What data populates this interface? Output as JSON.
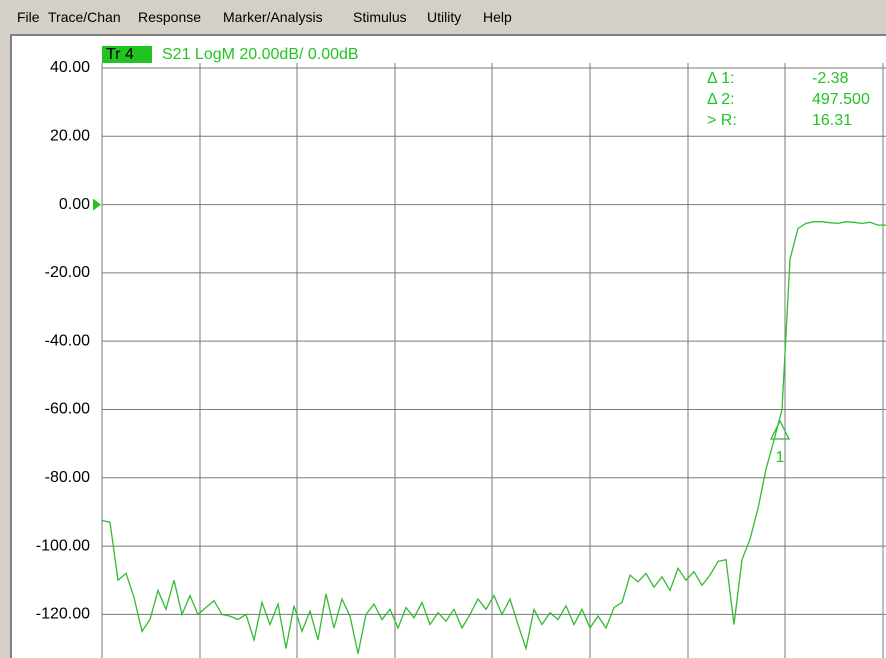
{
  "menu": [
    "File",
    "Trace/Chan",
    "Response",
    "Marker/Analysis",
    "Stimulus",
    "Utility",
    "Help"
  ],
  "chart_data": {
    "type": "line",
    "trace_label": "Tr 4",
    "title": "S21 LogM 20.00dB/ 0.00dB",
    "marker_readout": [
      {
        "name": "Δ 1:",
        "value": "-2.38"
      },
      {
        "name": "Δ 2:",
        "value": "497.500"
      },
      {
        "name": "> R:",
        "value": "16.31"
      }
    ],
    "marker_label": "1",
    "color": "#33bb33",
    "values": [
      -92.5,
      -93,
      -110,
      -108,
      -115,
      -125,
      -121.5,
      -113,
      -118.5,
      -110,
      -120,
      -114.5,
      -120,
      -118,
      -116,
      -120,
      -120.5,
      -121.5,
      -120,
      -127.5,
      -116.5,
      -123,
      -117,
      -130,
      -117.5,
      -125,
      -119,
      -127.5,
      -114,
      -124,
      -115.5,
      -120.5,
      -131.5,
      -120,
      -117,
      -121.5,
      -118.5,
      -124,
      -118,
      -121,
      -116.5,
      -123,
      -119.5,
      -122,
      -118.5,
      -124,
      -120,
      -115.5,
      -118.5,
      -114.5,
      -120,
      -115.5,
      -123,
      -130,
      -118.5,
      -123,
      -119.5,
      -121.5,
      -117.5,
      -123,
      -118.5,
      -124,
      -120.5,
      -124,
      -118,
      -116.5,
      -108.5,
      -110.5,
      -108,
      -112,
      -109,
      -113,
      -106.5,
      -110,
      -107.5,
      -111.5,
      -108.5,
      -104.5,
      -104,
      -123,
      -104,
      -98,
      -89,
      -77.5,
      -69,
      -60,
      -16,
      -7,
      -5.5,
      -5,
      -5,
      -5.3,
      -5.5,
      -5,
      -5.2,
      -5.5,
      -5.2,
      -6,
      -6
    ],
    "ylim": [
      -133,
      45
    ],
    "yticks": [
      {
        "value": 40,
        "label": "40.00"
      },
      {
        "value": 20,
        "label": "20.00"
      },
      {
        "value": 0,
        "label": "0.00"
      },
      {
        "value": -20,
        "label": "-20.00"
      },
      {
        "value": -40,
        "label": "-40.00"
      },
      {
        "value": -60,
        "label": "-60.00"
      },
      {
        "value": -80,
        "label": "-80.00"
      },
      {
        "value": -100,
        "label": "-100.00"
      },
      {
        "value": -120,
        "label": "-120.00"
      }
    ],
    "grid": true
  }
}
